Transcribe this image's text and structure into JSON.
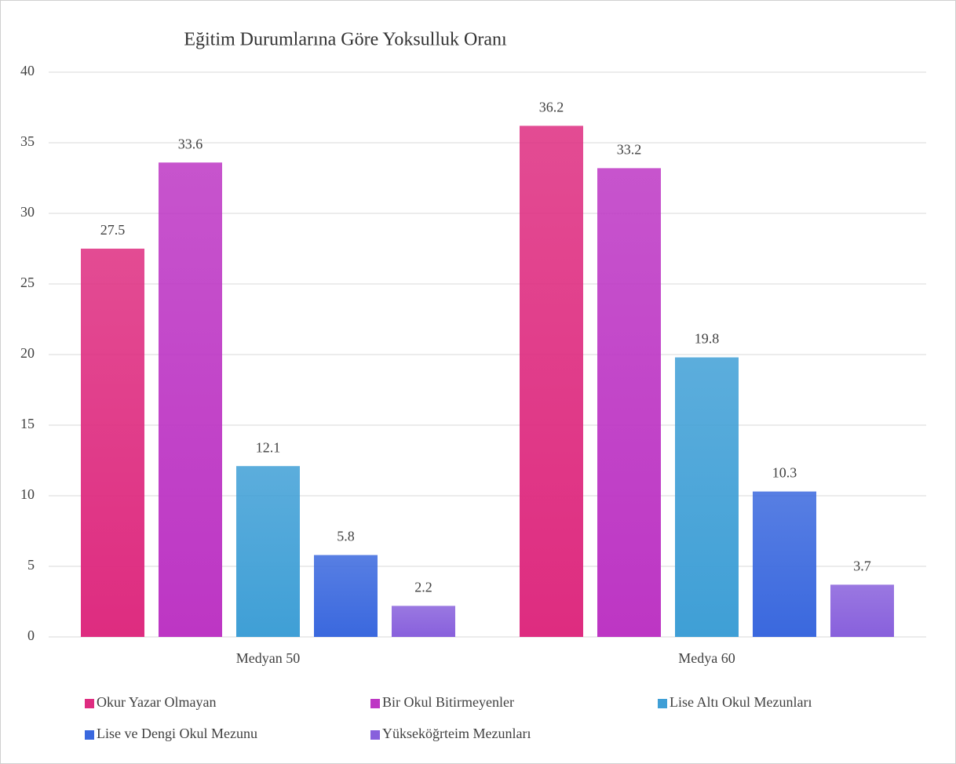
{
  "chart_data": {
    "type": "bar",
    "title": "Eğitim Durumlarına Göre Yoksulluk Oranı",
    "categories": [
      "Medyan 50",
      "Medya 60"
    ],
    "series": [
      {
        "name": "Okur Yazar Olmayan",
        "color": "#de2c80",
        "values": [
          27.5,
          36.2
        ]
      },
      {
        "name": "Bir Okul Bitirmeyenler",
        "color": "#bd36c4",
        "values": [
          33.6,
          33.2
        ]
      },
      {
        "name": "Lise Altı Okul Mezunları",
        "color": "#3f9fd6",
        "values": [
          12.1,
          19.8
        ]
      },
      {
        "name": "Lise ve Dengi Okul Mezunu",
        "color": "#3a68de",
        "values": [
          5.8,
          10.3
        ]
      },
      {
        "name": "Yükseköğrteim Mezunları",
        "color": "#8860dc",
        "values": [
          2.2,
          3.7
        ]
      }
    ],
    "ylim": [
      0,
      40
    ],
    "yticks": [
      0,
      5,
      10,
      15,
      20,
      25,
      30,
      35,
      40
    ],
    "grid": true,
    "legend": "bottom"
  }
}
